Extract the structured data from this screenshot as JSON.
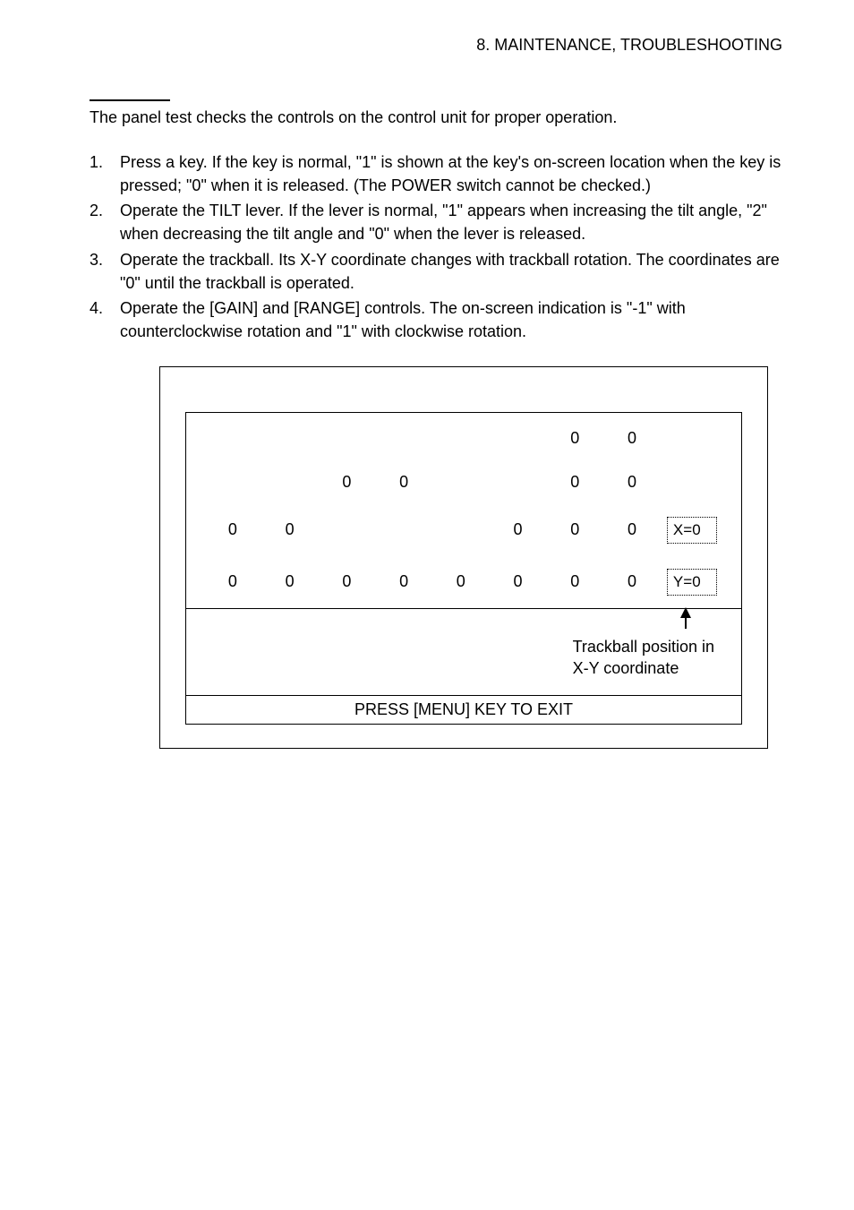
{
  "header": "8. MAINTENANCE, TROUBLESHOOTING",
  "intro": "The panel test checks the controls on the control unit for proper operation.",
  "steps": [
    "Press a key. If the key is normal, \"1\" is shown at the key's on-screen location when the key is pressed; \"0\" when it is released. (The POWER switch cannot be checked.)",
    "Operate the TILT lever. If the lever is normal, \"1\" appears when increasing the tilt angle, \"2\" when decreasing the tilt angle and \"0\" when the lever is released.",
    "Operate the trackball. Its X-Y coordinate changes with trackball rotation. The coordinates are \"0\" until the trackball is operated.",
    "Operate the [GAIN] and [RANGE] controls. The on-screen indication is \"-1\" with counterclockwise rotation and \"1\" with clockwise rotation."
  ],
  "diagram": {
    "grid_rows": [
      [
        "",
        "",
        "",
        "",
        "",
        "",
        "0",
        "0",
        ""
      ],
      [
        "",
        "",
        "0",
        "0",
        "",
        "",
        "0",
        "0",
        ""
      ],
      [
        "0",
        "0",
        "",
        "",
        "",
        "0",
        "0",
        "0",
        "X=0"
      ],
      [
        "0",
        "0",
        "0",
        "0",
        "0",
        "0",
        "0",
        "0",
        "Y=0"
      ]
    ],
    "annotation": "Trackball position in X-Y coordinate",
    "exit_text": "PRESS [MENU] KEY TO EXIT",
    "colors": {
      "text": "#000000",
      "background": "#ffffff",
      "border": "#000000"
    },
    "fonts": {
      "body_size_pt": 13,
      "family": "Arial"
    }
  }
}
